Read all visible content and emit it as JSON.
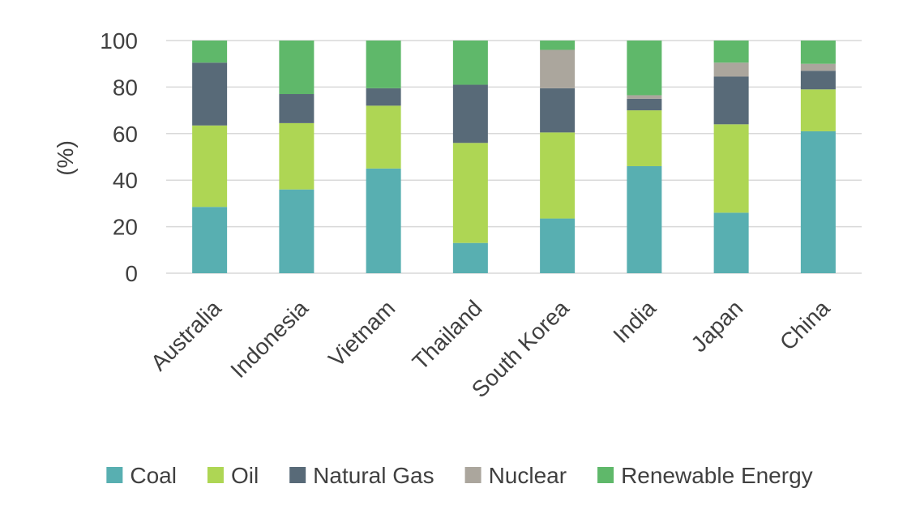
{
  "chart_data": {
    "type": "bar",
    "stacked": true,
    "title": "",
    "xlabel": "",
    "ylabel": "(%)",
    "ylim": [
      0,
      100
    ],
    "yticks": [
      0,
      20,
      40,
      60,
      80,
      100
    ],
    "grid": true,
    "legend_position": "bottom",
    "categories": [
      "Australia",
      "Indonesia",
      "Vietnam",
      "Thailand",
      "South Korea",
      "India",
      "Japan",
      "China"
    ],
    "series": [
      {
        "name": "Coal",
        "color": "#58AFB1",
        "values": [
          28.5,
          36,
          45,
          13,
          23.5,
          46,
          26,
          61
        ]
      },
      {
        "name": "Oil",
        "color": "#AED654",
        "values": [
          35,
          28.5,
          27,
          43,
          37,
          24,
          38,
          18
        ]
      },
      {
        "name": "Natural Gas",
        "color": "#586A78",
        "values": [
          27,
          12.5,
          7.5,
          25,
          19,
          5,
          20.5,
          8
        ]
      },
      {
        "name": "Nuclear",
        "color": "#ABA69D",
        "values": [
          0,
          0,
          0,
          0,
          16.5,
          1.5,
          6,
          3
        ]
      },
      {
        "name": "Renewable Energy",
        "color": "#5FB86A",
        "values": [
          9.5,
          23,
          20.5,
          19,
          4,
          23.5,
          9.5,
          10
        ]
      }
    ]
  }
}
